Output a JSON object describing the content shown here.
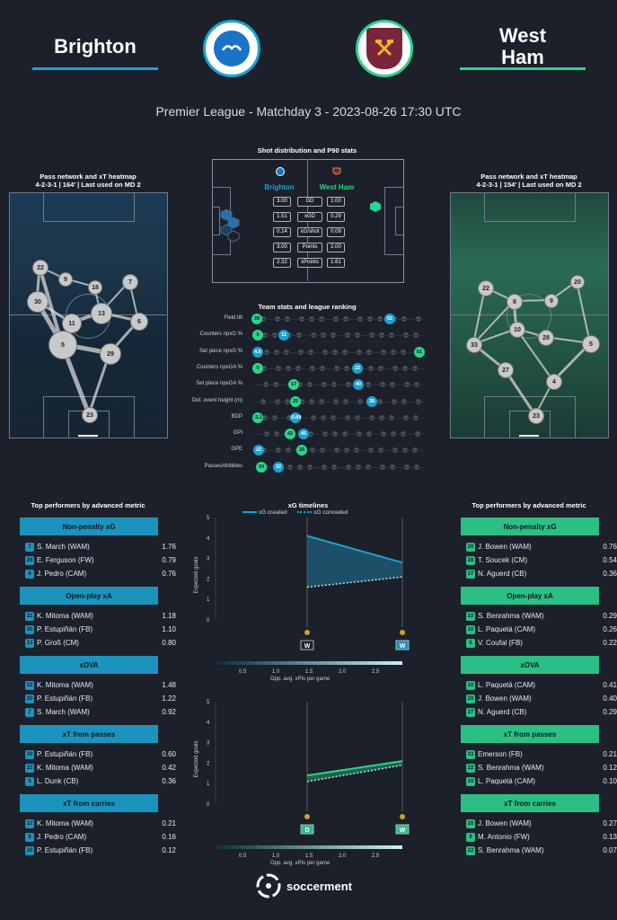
{
  "header": {
    "home_team": "Brighton",
    "away_team_line1": "West",
    "away_team_line2": "Ham",
    "subtitle": "Premier League - Matchday 3 - 2023-08-26 17:30 UTC",
    "home_color": "#1aa3d1",
    "away_color": "#2bd48a",
    "home_badge_text": "BRIGHTON & HOVE ALBION",
    "away_badge_text": "WEST HAM UNITED"
  },
  "pass_network": {
    "home": {
      "title": "Pass network and xT heatmap",
      "formation": "4-2-3-1 | 164' | Last used on MD 2",
      "players": [
        "22",
        "9",
        "18",
        "7",
        "30",
        "13",
        "11",
        "6",
        "5",
        "29",
        "23"
      ]
    },
    "away": {
      "title": "Pass network and xT heatmap",
      "formation": "4-2-3-1 | 154' | Last used on MD 2",
      "players": [
        "22",
        "8",
        "9",
        "20",
        "10",
        "28",
        "33",
        "5",
        "27",
        "4",
        "23"
      ]
    }
  },
  "shot": {
    "title": "Shot distribution and P90 stats",
    "home_label": "Brighton",
    "away_label": "West Ham",
    "rows": [
      {
        "label": "GD",
        "home": "3.00",
        "away": "1.00"
      },
      {
        "label": "xGD",
        "home": "1.51",
        "away": "0.29"
      },
      {
        "label": "xG/shot",
        "home": "0.14",
        "away": "0.09"
      },
      {
        "label": "Points",
        "home": "3.00",
        "away": "2.00"
      },
      {
        "label": "xPoints",
        "home": "2.32",
        "away": "1.61"
      }
    ]
  },
  "team_stats": {
    "title": "Team stats and league ranking",
    "rows": [
      {
        "label": "Field tilt",
        "home": "62",
        "away": "28"
      },
      {
        "label": "Counters npxG %",
        "home": "11",
        "away": "0"
      },
      {
        "label": "Set piece npxG %",
        "home": "4.6",
        "away": "61"
      },
      {
        "label": "Counters npxGA %",
        "home": "22",
        "away": "0"
      },
      {
        "label": "Set piece npxGA %",
        "home": "40",
        "away": "17"
      },
      {
        "label": "Def. event height (m)",
        "home": "35",
        "away": "25"
      },
      {
        "label": "BDP",
        "home": "-0.89",
        "away": "-3.1"
      },
      {
        "label": "GPI",
        "home": "45",
        "away": "42"
      },
      {
        "label": "GPE",
        "home": "22",
        "away": "29"
      },
      {
        "label": "Passes/dribbles",
        "home": "32",
        "away": "24"
      }
    ]
  },
  "performers_home": {
    "title": "Top performers by advanced metric",
    "groups": [
      {
        "metric": "Non-penalty xG",
        "rows": [
          [
            "7",
            "S. March (WAM)",
            "1.76"
          ],
          [
            "28",
            "E. Ferguson (FW)",
            "0.79"
          ],
          [
            "9",
            "J. Pedro (CAM)",
            "0.76"
          ]
        ]
      },
      {
        "metric": "Open-play xA",
        "rows": [
          [
            "22",
            "K. Mitoma (WAM)",
            "1.18"
          ],
          [
            "30",
            "P. Estupiñán (FB)",
            "1.10"
          ],
          [
            "13",
            "P. Groß (CM)",
            "0.80"
          ]
        ]
      },
      {
        "metric": "xOVA",
        "rows": [
          [
            "22",
            "K. Mitoma (WAM)",
            "1.48"
          ],
          [
            "30",
            "P. Estupiñán (FB)",
            "1.22"
          ],
          [
            "7",
            "S. March (WAM)",
            "0.92"
          ]
        ]
      },
      {
        "metric": "xT from passes",
        "rows": [
          [
            "30",
            "P. Estupiñán (FB)",
            "0.60"
          ],
          [
            "22",
            "K. Mitoma (WAM)",
            "0.42"
          ],
          [
            "5",
            "L. Dunk (CB)",
            "0.36"
          ]
        ]
      },
      {
        "metric": "xT from carries",
        "rows": [
          [
            "22",
            "K. Mitoma (WAM)",
            "0.21"
          ],
          [
            "9",
            "J. Pedro (CAM)",
            "0.16"
          ],
          [
            "30",
            "P. Estupiñán (FB)",
            "0.12"
          ]
        ]
      }
    ]
  },
  "performers_away": {
    "title": "Top performers by advanced metric",
    "groups": [
      {
        "metric": "Non-penalty xG",
        "rows": [
          [
            "20",
            "J. Bowen (WAM)",
            "0.76"
          ],
          [
            "28",
            "T. Soucek (CM)",
            "0.54"
          ],
          [
            "27",
            "N. Aguerd (CB)",
            "0.36"
          ]
        ]
      },
      {
        "metric": "Open-play xA",
        "rows": [
          [
            "22",
            "S. Benrahma (WAM)",
            "0.29"
          ],
          [
            "10",
            "L. Paquetá (CAM)",
            "0.26"
          ],
          [
            "5",
            "V. Coufal (FB)",
            "0.22"
          ]
        ]
      },
      {
        "metric": "xOVA",
        "rows": [
          [
            "10",
            "L. Paquetá (CAM)",
            "0.41"
          ],
          [
            "20",
            "J. Bowen (WAM)",
            "0.40"
          ],
          [
            "27",
            "N. Aguerd (CB)",
            "0.29"
          ]
        ]
      },
      {
        "metric": "xT from passes",
        "rows": [
          [
            "33",
            "Emerson (FB)",
            "0.21"
          ],
          [
            "22",
            "S. Benrahma (WAM)",
            "0.12"
          ],
          [
            "10",
            "L. Paquetá (CAM)",
            "0.10"
          ]
        ]
      },
      {
        "metric": "xT from carries",
        "rows": [
          [
            "20",
            "J. Bowen (WAM)",
            "0.27"
          ],
          [
            "9",
            "M. Antonio (FW)",
            "0.13"
          ],
          [
            "22",
            "S. Benrahma (WAM)",
            "0.07"
          ]
        ]
      }
    ]
  },
  "timeline": {
    "title": "xG timelines",
    "legend_created": "xG created",
    "legend_conceded": "xG conceded",
    "ylabel": "Expected goals",
    "colorbar_label": "Opp. avg. xPts per game"
  },
  "chart_data": [
    {
      "type": "area",
      "title": "xG timelines",
      "ylabel": "Expected goals",
      "ylim": [
        0,
        5
      ],
      "x": [
        "W",
        "W"
      ],
      "series": [
        {
          "name": "xG created",
          "values": [
            4.1,
            2.8
          ]
        },
        {
          "name": "xG conceded",
          "values": [
            1.6,
            2.1
          ]
        }
      ],
      "colorbar": {
        "label": "Opp. avg. xPts per game",
        "ticks": [
          "0.5",
          "1.0",
          "1.5",
          "2.0",
          "2.5"
        ]
      }
    },
    {
      "type": "area",
      "ylabel": "Expected goals",
      "ylim": [
        0,
        5
      ],
      "x": [
        "D",
        "W"
      ],
      "series": [
        {
          "name": "xG created",
          "values": [
            1.4,
            2.1
          ]
        },
        {
          "name": "xG conceded",
          "values": [
            1.1,
            1.9
          ]
        }
      ],
      "colorbar": {
        "label": "Opp. avg. xPts per game",
        "ticks": [
          "0.5",
          "1.0",
          "1.5",
          "2.0",
          "2.5"
        ]
      }
    }
  ],
  "footer": {
    "brand": "soccerment"
  }
}
